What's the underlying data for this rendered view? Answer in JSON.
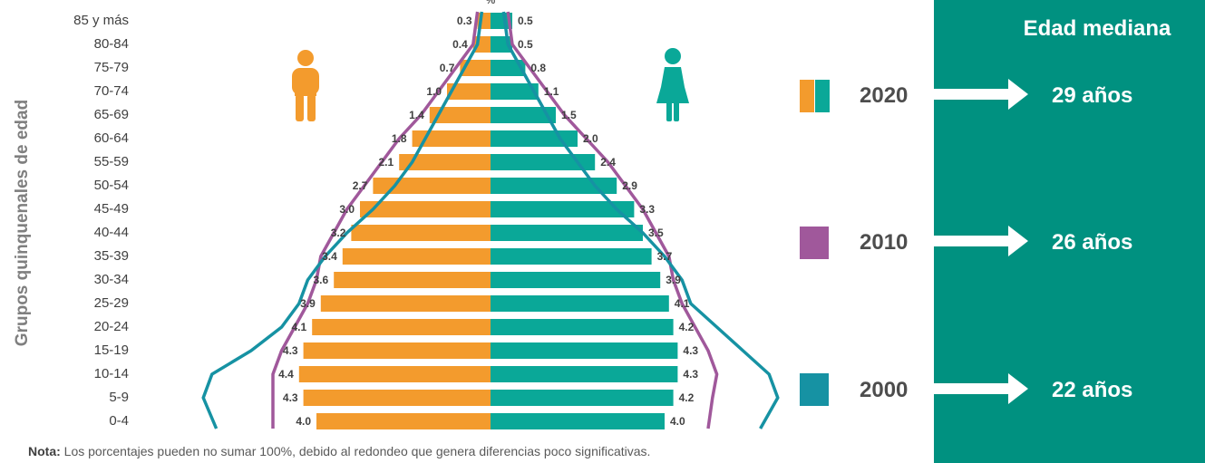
{
  "chart_data": {
    "type": "bar",
    "title": "",
    "unit_label": "%",
    "ylabel": "Grupos quinquenales de edad",
    "categories": [
      "85 y más",
      "80-84",
      "75-79",
      "70-74",
      "65-69",
      "60-64",
      "55-59",
      "50-54",
      "45-49",
      "40-44",
      "35-39",
      "30-34",
      "25-29",
      "20-24",
      "15-19",
      "10-14",
      "5-9",
      "0-4"
    ],
    "series": [
      {
        "values": [
          0.3,
          0.4,
          0.7,
          1.0,
          1.4,
          1.8,
          2.1,
          2.7,
          3.0,
          3.2,
          3.4,
          3.6,
          3.9,
          4.1,
          4.3,
          4.4,
          4.3,
          4.0
        ],
        "value_labels": [
          "0.3",
          "0.4",
          "0.7",
          "1.0",
          "1.4",
          "1.8",
          "2.1",
          "2.7",
          "3.0",
          "3.2",
          "3.4",
          "3.6",
          "3.9",
          "4.1",
          "4.3",
          "4.4",
          "4.3",
          "4.0"
        ],
        "color": "#f39b2d"
      },
      {
        "values": [
          0.5,
          0.5,
          0.8,
          1.1,
          1.5,
          2.0,
          2.4,
          2.9,
          3.3,
          3.5,
          3.7,
          3.9,
          4.1,
          4.2,
          4.3,
          4.3,
          4.2,
          4.0
        ],
        "value_labels": [
          "0.5",
          "0.5",
          "0.8",
          "1.1",
          "1.5",
          "2.0",
          "2.4",
          "2.9",
          "3.3",
          "3.5",
          "3.7",
          "3.9",
          "4.1",
          "4.2",
          "4.3",
          "4.3",
          "4.2",
          "4.0"
        ],
        "color": "#0aa898"
      }
    ],
    "outlines": [
      {
        "name": "2010",
        "color": "#a0589b",
        "left": [
          0.3,
          0.4,
          0.8,
          1.2,
          1.6,
          2.1,
          2.5,
          2.9,
          3.3,
          3.6,
          3.9,
          4.0,
          4.2,
          4.5,
          4.8,
          5.0,
          5.0,
          5.0
        ],
        "right": [
          0.4,
          0.5,
          0.9,
          1.3,
          1.7,
          2.2,
          2.7,
          3.1,
          3.5,
          3.8,
          4.1,
          4.2,
          4.4,
          4.7,
          5.0,
          5.2,
          5.1,
          5.0
        ]
      },
      {
        "name": "2000",
        "color": "#1692a3",
        "left": [
          0.2,
          0.3,
          0.6,
          0.9,
          1.2,
          1.5,
          1.8,
          2.2,
          2.7,
          3.3,
          3.8,
          4.2,
          4.4,
          4.8,
          5.5,
          6.4,
          6.6,
          6.3
        ],
        "right": [
          0.3,
          0.4,
          0.7,
          1.0,
          1.3,
          1.6,
          2.0,
          2.4,
          2.9,
          3.5,
          4.0,
          4.4,
          4.6,
          5.2,
          5.8,
          6.4,
          6.6,
          6.2
        ]
      }
    ]
  },
  "panel": {
    "title": "Edad mediana",
    "rows": [
      {
        "year": "2020",
        "median": "29 años",
        "colors": [
          "#f39b2d",
          "#0aa898"
        ]
      },
      {
        "year": "2010",
        "median": "26 años",
        "colors": [
          "#a0589b"
        ]
      },
      {
        "year": "2000",
        "median": "22 años",
        "colors": [
          "#1692a3"
        ]
      }
    ]
  },
  "icons": {
    "male": "male-figure-icon",
    "female": "female-figure-icon",
    "male_color": "#f39b2d",
    "female_color": "#0aa898"
  },
  "note": {
    "label": "Nota:",
    "text": " Los porcentajes pueden no sumar 100%, debido al redondeo que genera diferencias poco significativas."
  }
}
